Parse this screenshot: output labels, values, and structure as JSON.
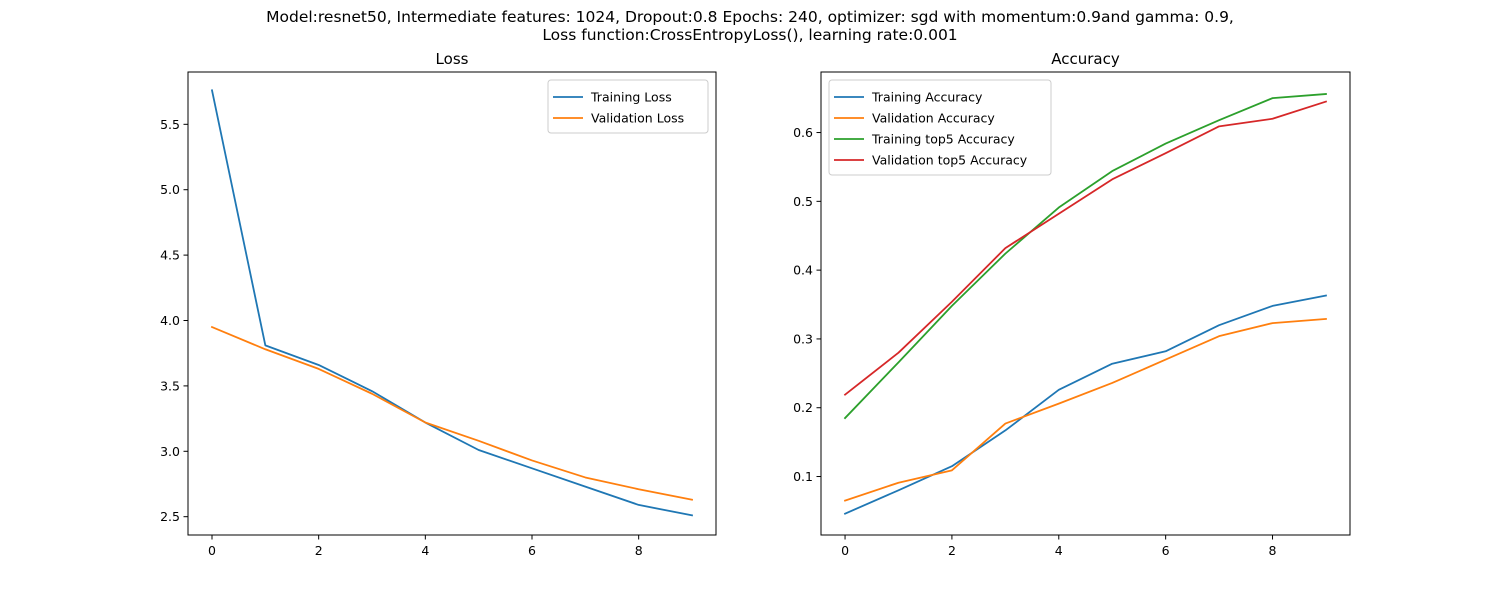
{
  "figure": {
    "suptitle_line1": "Model:resnet50, Intermediate features: 1024, Dropout:0.8 Epochs: 240, optimizer: sgd with momentum:0.9and gamma: 0.9,",
    "suptitle_line2": "Loss function:CrossEntropyLoss(), learning rate:0.001"
  },
  "chart_data": [
    {
      "type": "line",
      "title": "Loss",
      "xlabel": "",
      "ylabel": "",
      "x": [
        0,
        1,
        2,
        3,
        4,
        5,
        6,
        7,
        8,
        9
      ],
      "xlim": [
        -0.45,
        9.45
      ],
      "ylim": [
        2.36,
        5.9
      ],
      "xticks": [
        0,
        2,
        4,
        6,
        8
      ],
      "yticks": [
        2.5,
        3.0,
        3.5,
        4.0,
        4.5,
        5.0,
        5.5
      ],
      "legend": "upper right",
      "grid": false,
      "series": [
        {
          "name": "Training Loss",
          "color": "#1f77b4",
          "values": [
            5.76,
            3.81,
            3.66,
            3.46,
            3.22,
            3.01,
            2.87,
            2.73,
            2.59,
            2.51
          ]
        },
        {
          "name": "Validation Loss",
          "color": "#ff7f0e",
          "values": [
            3.95,
            3.78,
            3.63,
            3.44,
            3.22,
            3.08,
            2.93,
            2.8,
            2.71,
            2.63
          ]
        }
      ]
    },
    {
      "type": "line",
      "title": "Accuracy",
      "xlabel": "",
      "ylabel": "",
      "x": [
        0,
        1,
        2,
        3,
        4,
        5,
        6,
        7,
        8,
        9
      ],
      "xlim": [
        -0.45,
        9.45
      ],
      "ylim": [
        0.015,
        0.688
      ],
      "xticks": [
        0,
        2,
        4,
        6,
        8
      ],
      "yticks": [
        0.1,
        0.2,
        0.3,
        0.4,
        0.5,
        0.6
      ],
      "legend": "upper left",
      "grid": false,
      "series": [
        {
          "name": "Training Accuracy",
          "color": "#1f77b4",
          "values": [
            0.046,
            0.08,
            0.115,
            0.167,
            0.226,
            0.264,
            0.282,
            0.32,
            0.348,
            0.363
          ]
        },
        {
          "name": "Validation Accuracy",
          "color": "#ff7f0e",
          "values": [
            0.065,
            0.091,
            0.109,
            0.177,
            0.206,
            0.236,
            0.27,
            0.304,
            0.323,
            0.329
          ]
        },
        {
          "name": "Training top5 Accuracy",
          "color": "#2ca02c",
          "values": [
            0.185,
            0.266,
            0.348,
            0.424,
            0.491,
            0.544,
            0.584,
            0.618,
            0.65,
            0.656
          ]
        },
        {
          "name": "Validation top5 Accuracy",
          "color": "#d62728",
          "values": [
            0.219,
            0.28,
            0.354,
            0.432,
            0.482,
            0.532,
            0.57,
            0.609,
            0.62,
            0.645
          ]
        }
      ]
    }
  ]
}
